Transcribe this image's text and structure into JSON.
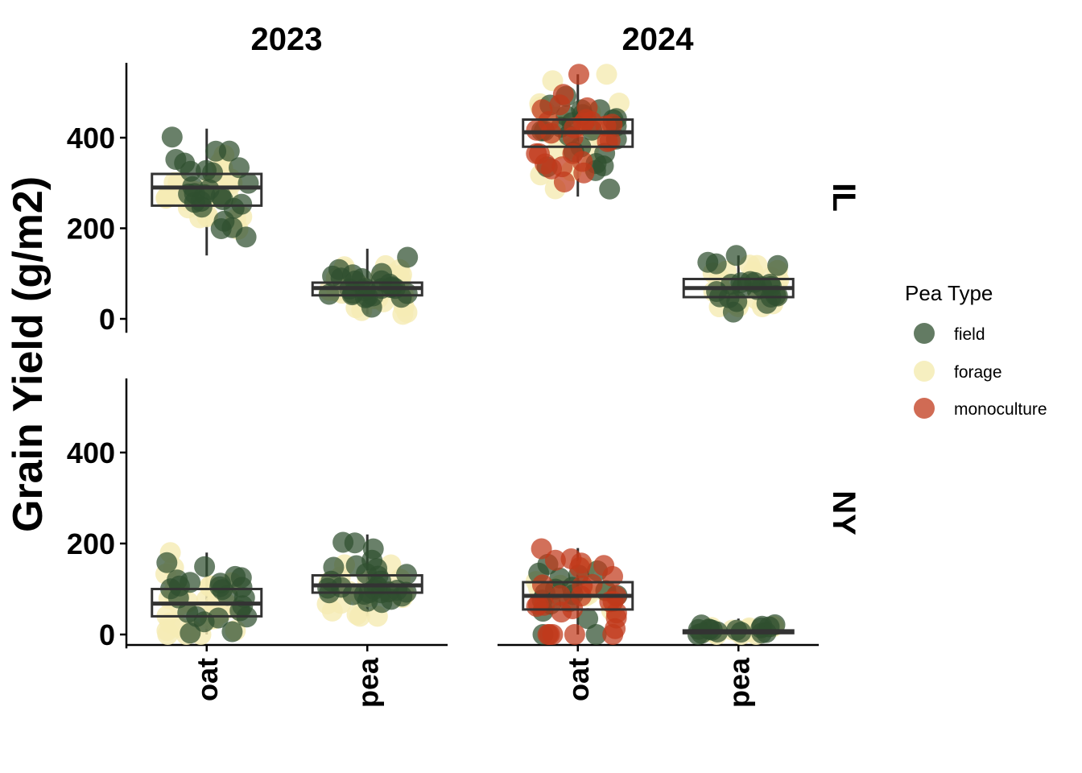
{
  "chart_data": {
    "type": "scatter",
    "subtype": "faceted jittered points over boxplots",
    "title": "",
    "xlabel": "",
    "ylabel": "Grain Yield (g/m2)",
    "ylim": [
      0,
      560
    ],
    "y_ticks": [
      0,
      200,
      400
    ],
    "categories": [
      "oat",
      "pea"
    ],
    "facet_cols": [
      "2023",
      "2024"
    ],
    "facet_rows": [
      "IL",
      "NY"
    ],
    "legend": {
      "title": "Pea Type",
      "placement": "right",
      "entries": [
        {
          "label": "field",
          "color": "#2f4f2f"
        },
        {
          "label": "forage",
          "color": "#f5ecb5"
        },
        {
          "label": "monoculture",
          "color": "#c0391b"
        }
      ]
    },
    "grid": false,
    "panels": [
      {
        "row": "IL",
        "col": "2023",
        "groups": [
          {
            "category": "oat",
            "box": {
              "min": 140,
              "q1": 250,
              "median": 290,
              "q3": 320,
              "max": 420
            },
            "points": {
              "field": {
                "n": 26,
                "mean": 290,
                "sd": 55
              },
              "forage": {
                "n": 30,
                "mean": 285,
                "sd": 55
              },
              "monoculture": {
                "n": 0
              }
            }
          },
          {
            "category": "pea",
            "box": {
              "min": 10,
              "q1": 52,
              "median": 68,
              "q3": 80,
              "max": 155
            },
            "points": {
              "field": {
                "n": 26,
                "mean": 70,
                "sd": 25
              },
              "forage": {
                "n": 30,
                "mean": 65,
                "sd": 35
              },
              "monoculture": {
                "n": 0
              }
            }
          }
        ]
      },
      {
        "row": "IL",
        "col": "2024",
        "groups": [
          {
            "category": "oat",
            "box": {
              "min": 270,
              "q1": 380,
              "median": 412,
              "q3": 440,
              "max": 540
            },
            "points": {
              "field": {
                "n": 24,
                "mean": 420,
                "sd": 55
              },
              "forage": {
                "n": 22,
                "mean": 400,
                "sd": 65
              },
              "monoculture": {
                "n": 26,
                "mean": 405,
                "sd": 60
              }
            }
          },
          {
            "category": "pea",
            "box": {
              "min": 15,
              "q1": 48,
              "median": 68,
              "q3": 88,
              "max": 140
            },
            "points": {
              "field": {
                "n": 22,
                "mean": 70,
                "sd": 28
              },
              "forage": {
                "n": 28,
                "mean": 65,
                "sd": 35
              },
              "monoculture": {
                "n": 0
              }
            }
          }
        ]
      },
      {
        "row": "NY",
        "col": "2023",
        "groups": [
          {
            "category": "oat",
            "box": {
              "min": 0,
              "q1": 40,
              "median": 68,
              "q3": 100,
              "max": 180
            },
            "points": {
              "field": {
                "n": 24,
                "mean": 100,
                "sd": 40
              },
              "forage": {
                "n": 30,
                "mean": 55,
                "sd": 45
              },
              "monoculture": {
                "n": 0
              }
            }
          },
          {
            "category": "pea",
            "box": {
              "min": 40,
              "q1": 92,
              "median": 108,
              "q3": 130,
              "max": 220
            },
            "points": {
              "field": {
                "n": 28,
                "mean": 125,
                "sd": 38
              },
              "forage": {
                "n": 20,
                "mean": 95,
                "sd": 35
              },
              "monoculture": {
                "n": 0
              }
            }
          }
        ]
      },
      {
        "row": "NY",
        "col": "2024",
        "groups": [
          {
            "category": "oat",
            "box": {
              "min": 0,
              "q1": 55,
              "median": 85,
              "q3": 115,
              "max": 190
            },
            "points": {
              "field": {
                "n": 18,
                "mean": 90,
                "sd": 50
              },
              "forage": {
                "n": 10,
                "mean": 110,
                "sd": 40
              },
              "monoculture": {
                "n": 28,
                "mean": 85,
                "sd": 50
              }
            }
          },
          {
            "category": "pea",
            "box": {
              "min": 0,
              "q1": 3,
              "median": 6,
              "q3": 9,
              "max": 35
            },
            "points": {
              "field": {
                "n": 16,
                "mean": 7,
                "sd": 8
              },
              "forage": {
                "n": 14,
                "mean": 10,
                "sd": 9
              },
              "monoculture": {
                "n": 0
              }
            }
          }
        ]
      }
    ]
  }
}
